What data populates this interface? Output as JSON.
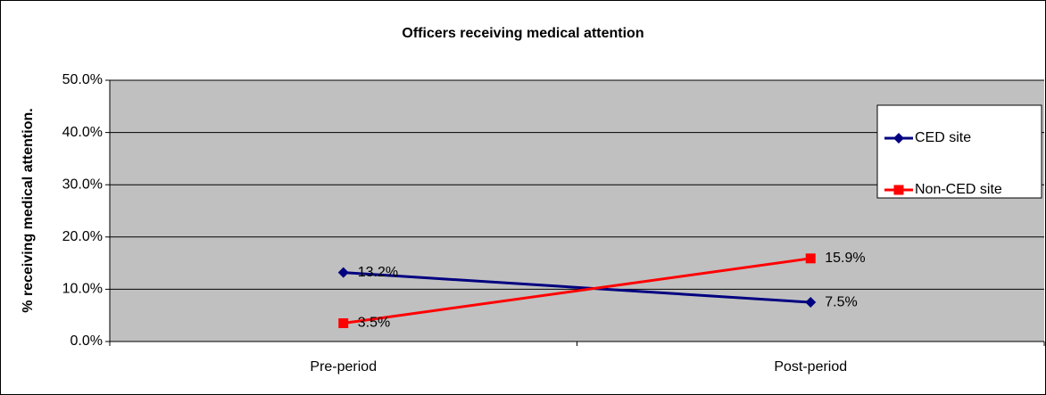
{
  "chart_data": {
    "type": "line",
    "title": "Officers receiving medical attention",
    "y_label": "% receiving medical attention.",
    "categories": [
      "Pre-period",
      "Post-period"
    ],
    "series": [
      {
        "name": "CED site",
        "color": "#000080",
        "marker": "diamond",
        "values": [
          13.2,
          7.5
        ],
        "value_labels": [
          "13.2%",
          "7.5%"
        ]
      },
      {
        "name": "Non-CED site",
        "color": "#ff0000",
        "marker": "square",
        "values": [
          3.5,
          15.9
        ],
        "value_labels": [
          "3.5%",
          "15.9%"
        ]
      }
    ],
    "ylim": [
      0,
      50
    ],
    "yticks": [
      {
        "value": 0,
        "label": "0.0%"
      },
      {
        "value": 10,
        "label": "10.0%"
      },
      {
        "value": 20,
        "label": "20.0%"
      },
      {
        "value": 30,
        "label": "30.0%"
      },
      {
        "value": 40,
        "label": "40.0%"
      },
      {
        "value": 50,
        "label": "50.0%"
      }
    ],
    "grid": true,
    "legend": "right",
    "plot_background": "#c0c0c0"
  }
}
